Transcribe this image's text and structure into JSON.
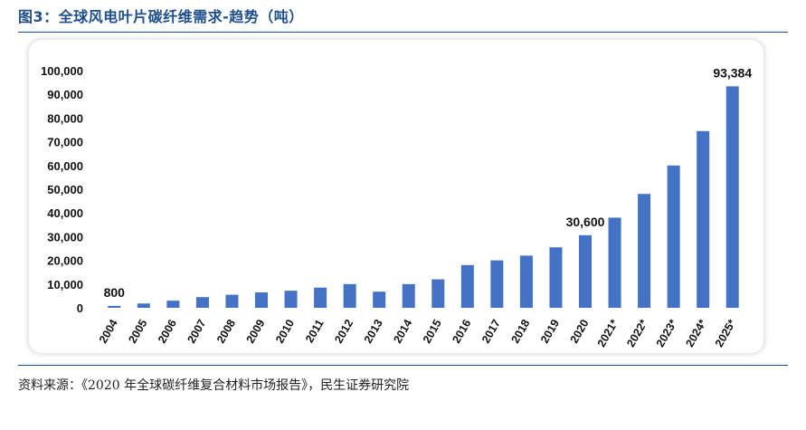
{
  "figure": {
    "title": "图3：全球风电叶片碳纤维需求-趋势（吨）",
    "source": "资料来源：《2020 年全球碳纤维复合材料市场报告》，民生证券研究院"
  },
  "chart_data": {
    "type": "bar",
    "title": "",
    "xlabel": "",
    "ylabel": "",
    "ylim": [
      0,
      100000
    ],
    "yticks": [
      0,
      10000,
      20000,
      30000,
      40000,
      50000,
      60000,
      70000,
      80000,
      90000,
      100000
    ],
    "ytick_labels": [
      "0",
      "10,000",
      "20,000",
      "30,000",
      "40,000",
      "50,000",
      "60,000",
      "70,000",
      "80,000",
      "90,000",
      "100,000"
    ],
    "categories": [
      "2004",
      "2005",
      "2006",
      "2007",
      "2008",
      "2009",
      "2010",
      "2011",
      "2012",
      "2013",
      "2014",
      "2015",
      "2016",
      "2017",
      "2018",
      "2019",
      "2020",
      "2021*",
      "2022*",
      "2023*",
      "2024*",
      "2025*"
    ],
    "values": [
      800,
      1800,
      3000,
      4500,
      5500,
      6500,
      7200,
      8500,
      10000,
      6800,
      10000,
      12000,
      18000,
      20000,
      22000,
      25500,
      30600,
      38000,
      48000,
      60000,
      74500,
      93384
    ],
    "data_labels": [
      {
        "index": 0,
        "text": "800"
      },
      {
        "index": 16,
        "text": "30,600"
      },
      {
        "index": 21,
        "text": "93,384"
      }
    ],
    "bar_color": "#4472c4",
    "grid": false,
    "legend": "none"
  }
}
